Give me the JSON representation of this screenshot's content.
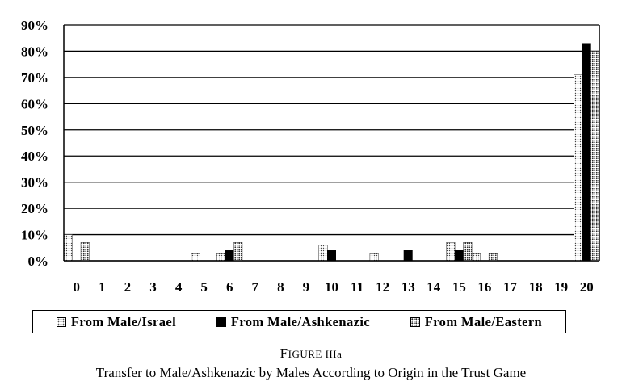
{
  "chart_data": {
    "type": "bar",
    "categories": [
      "0",
      "1",
      "2",
      "3",
      "4",
      "5",
      "6",
      "7",
      "8",
      "9",
      "10",
      "11",
      "12",
      "13",
      "14",
      "15",
      "16",
      "17",
      "18",
      "19",
      "20"
    ],
    "ylim": [
      0,
      90
    ],
    "yticks": [
      "0%",
      "10%",
      "20%",
      "30%",
      "40%",
      "50%",
      "60%",
      "70%",
      "80%",
      "90%"
    ],
    "grid": true,
    "legend_position": "bottom",
    "series": [
      {
        "name": "From Male/Israel",
        "pattern": "light-dots",
        "values": [
          10,
          0,
          0,
          0,
          0,
          3,
          3,
          0,
          0,
          0,
          6,
          0,
          3,
          0,
          0,
          7,
          3,
          0,
          0,
          0,
          71
        ]
      },
      {
        "name": "From Male/Ashkenazic",
        "pattern": "solid-black",
        "values": [
          0,
          0,
          0,
          0,
          0,
          0,
          4,
          0,
          0,
          0,
          4,
          0,
          0,
          4,
          0,
          4,
          0,
          0,
          0,
          0,
          83
        ]
      },
      {
        "name": "From Male/Eastern",
        "pattern": "dense-dots",
        "values": [
          7,
          0,
          0,
          0,
          0,
          0,
          7,
          0,
          0,
          0,
          0,
          0,
          0,
          0,
          0,
          7,
          3,
          0,
          0,
          0,
          80
        ]
      }
    ]
  },
  "caption": {
    "figure_prefix": "F",
    "figure_rest": "IGURE IIIa",
    "title": "Transfer to Male/Ashkenazic by Males According to Origin in the Trust Game"
  },
  "colors": {
    "black": "#000000",
    "background": "#ffffff"
  }
}
